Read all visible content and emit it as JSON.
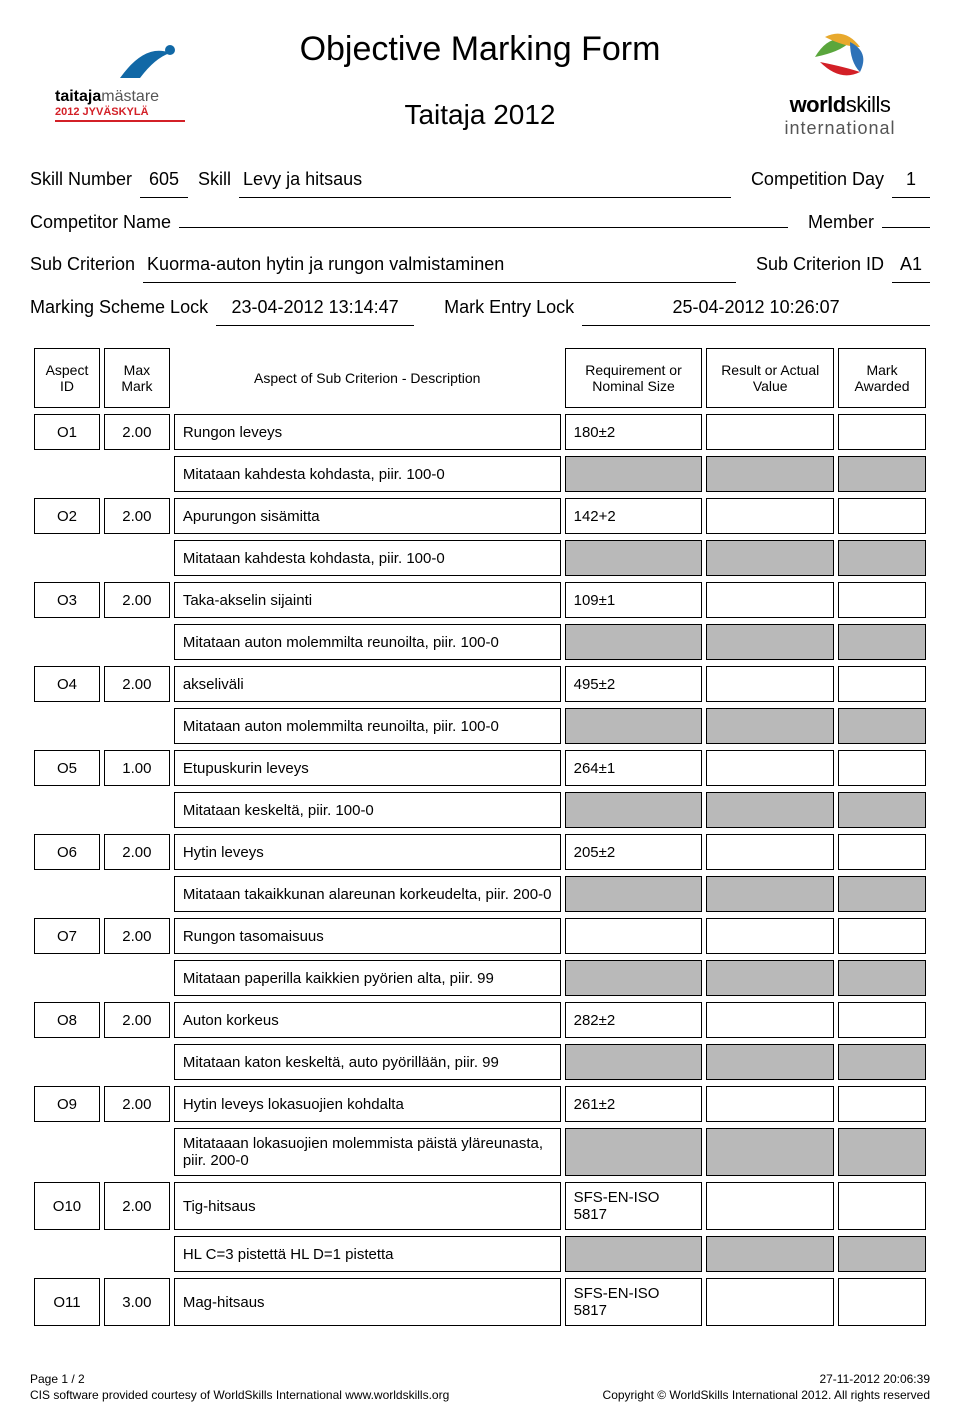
{
  "title": "Objective Marking Form",
  "subtitle": "Taitaja 2012",
  "header": {
    "skill_number_label": "Skill Number",
    "skill_number": "605",
    "skill_label": "Skill",
    "skill_name": "Levy ja hitsaus",
    "competition_day_label": "Competition Day",
    "competition_day": "1",
    "competitor_label": "Competitor Name",
    "competitor_name": "",
    "member_label": "Member",
    "member_value": "",
    "sub_criterion_label": "Sub Criterion",
    "sub_criterion_name": "Kuorma-auton hytin ja rungon valmistaminen",
    "sub_criterion_id_label": "Sub Criterion ID",
    "sub_criterion_id": "A1",
    "marking_lock_label": "Marking Scheme Lock",
    "marking_lock": "23-04-2012  13:14:47",
    "entry_lock_label": "Mark Entry Lock",
    "entry_lock": "25-04-2012  10:26:07"
  },
  "columns": {
    "aspect_id": "Aspect ID",
    "max_mark": "Max Mark",
    "description": "Aspect of Sub Criterion - Description",
    "requirement": "Requirement or Nominal Size",
    "result": "Result or Actual Value",
    "awarded": "Mark Awarded"
  },
  "rows": [
    {
      "id": "O1",
      "max": "2.00",
      "desc": "Rungon leveys",
      "req": "180±2",
      "note": "Mitataan kahdesta kohdasta, piir. 100-0"
    },
    {
      "id": "O2",
      "max": "2.00",
      "desc": "Apurungon sisämitta",
      "req": "142+2",
      "note": "Mitataan kahdesta kohdasta, piir. 100-0"
    },
    {
      "id": "O3",
      "max": "2.00",
      "desc": "Taka-akselin sijainti",
      "req": "109±1",
      "note": "Mitataan auton molemmilta reunoilta, piir. 100-0"
    },
    {
      "id": "O4",
      "max": "2.00",
      "desc": "akseliväli",
      "req": "495±2",
      "note": "Mitataan auton molemmilta reunoilta, piir. 100-0"
    },
    {
      "id": "O5",
      "max": "1.00",
      "desc": "Etupuskurin leveys",
      "req": "264±1",
      "note": "Mitataan keskeltä, piir. 100-0"
    },
    {
      "id": "O6",
      "max": "2.00",
      "desc": "Hytin leveys",
      "req": "205±2",
      "note": "Mitataan takaikkunan alareunan korkeudelta, piir. 200-0"
    },
    {
      "id": "O7",
      "max": "2.00",
      "desc": "Rungon tasomaisuus",
      "req": "",
      "note": "Mitataan paperilla kaikkien pyörien alta, piir. 99"
    },
    {
      "id": "O8",
      "max": "2.00",
      "desc": "Auton korkeus",
      "req": "282±2",
      "note": "Mitataan katon keskeltä, auto pyörillään, piir. 99"
    },
    {
      "id": "O9",
      "max": "2.00",
      "desc": "Hytin leveys lokasuojien kohdalta",
      "req": "261±2",
      "note": "Mitataaan lokasuojien molemmista päistä yläreunasta, piir. 200-0"
    },
    {
      "id": "O10",
      "max": "2.00",
      "desc": "Tig-hitsaus",
      "req": "SFS-EN-ISO 5817",
      "note": "HL  C=3 pistettä  HL D=1 pistetta"
    },
    {
      "id": "O11",
      "max": "3.00",
      "desc": "Mag-hitsaus",
      "req": "SFS-EN-ISO 5817",
      "note": ""
    }
  ],
  "footer": {
    "page": "Page 1 / 2",
    "timestamp": "27-11-2012  20:06:39",
    "credit": "CIS software provided courtesy of WorldSkills International www.worldskills.org",
    "copyright": "Copyright © WorldSkills International 2012. All rights reserved"
  },
  "logos": {
    "taitaja_text1": "taitaja",
    "taitaja_text2": "mästare",
    "taitaja_year": "2012 JYVÄSKYLÄ",
    "ws_bold": "world",
    "ws_normal": "skills",
    "ws_sub": "international"
  },
  "colors": {
    "cell_shaded": "#b9b9b9",
    "swoosh_blue": "#1168a6",
    "swoosh_red": "#d32027",
    "globe_green": "#5aa63c",
    "globe_yellow": "#e8a92d",
    "globe_blue": "#2e72b8",
    "globe_red": "#d32027"
  }
}
